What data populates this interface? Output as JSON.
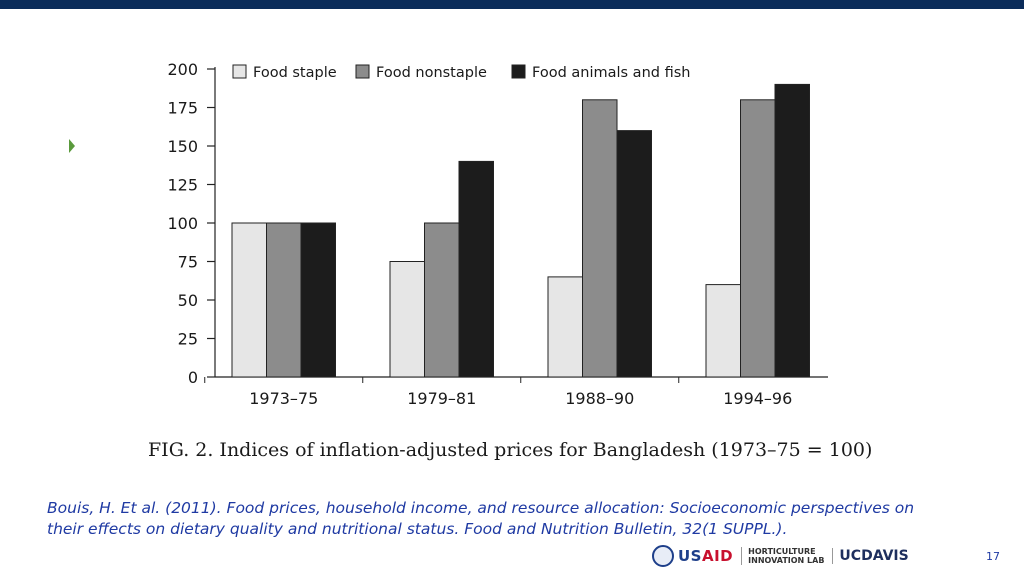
{
  "slide": {
    "caption": "FIG. 2. Indices of inflation-adjusted prices for Bangladesh (1973–75 = 100)",
    "citation": "Bouis, H. Et al. (2011). Food prices, household income, and resource allocation: Socioeconomic perspectives on their effects on dietary quality and nutritional status. Food and Nutrition Bulletin, 32(1 SUPPL.).",
    "page_number": "17",
    "logos": {
      "usaid_main": "US",
      "usaid_accent": "AID",
      "hort_line1": "HORTICULTURE",
      "hort_line2": "INNOVATION LAB",
      "ucdavis_uc": "UC",
      "ucdavis_davis": "DAVIS"
    }
  },
  "colors": {
    "top_bar": "#0b2c5a",
    "bullet": "#5a9a3c",
    "citation": "#1f3aa3"
  },
  "chart_data": {
    "type": "bar",
    "title": "",
    "xlabel": "",
    "ylabel": "",
    "categories": [
      "1973–75",
      "1979–81",
      "1988–90",
      "1994–96"
    ],
    "series": [
      {
        "name": "Food staple",
        "values": [
          100,
          75,
          65,
          60
        ],
        "color": "#e6e6e6"
      },
      {
        "name": "Food nonstaple",
        "values": [
          100,
          100,
          180,
          180
        ],
        "color": "#8c8c8c"
      },
      {
        "name": "Food animals and fish",
        "values": [
          100,
          140,
          160,
          190
        ],
        "color": "#1c1c1c"
      }
    ],
    "ylim": [
      0,
      200
    ],
    "yticks": [
      0,
      25,
      50,
      75,
      100,
      125,
      150,
      175,
      200
    ],
    "grid": false,
    "legend_position": "top"
  }
}
